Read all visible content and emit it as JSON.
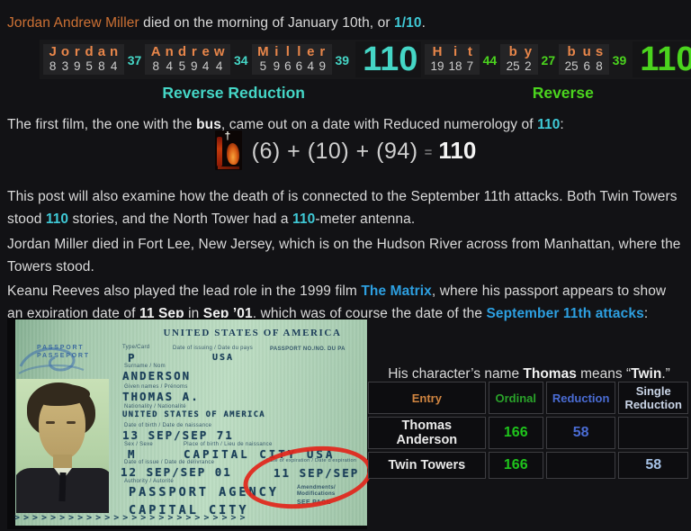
{
  "colors": {
    "page_bg": "#121215",
    "cyan_accent": "#45d6c6",
    "green_accent": "#4bd41e",
    "letter_orange": "#e8864a",
    "orange_link": "#cd7134",
    "blue_link": "#2d9fe0",
    "table_green": "#1fc41c",
    "table_blue": "#4a6cd4",
    "red_circle": "#e2251a"
  },
  "intro": {
    "link": "Jordan Andrew Miller",
    "s1": " died on the morning of January 10th, or ",
    "num": "1/10",
    "s2": "."
  },
  "gematria": {
    "left": {
      "color": "#45d6c6",
      "words": [
        {
          "word": "Jordan",
          "letters": [
            "J",
            "o",
            "r",
            "d",
            "a",
            "n"
          ],
          "values": [
            "8",
            "3",
            "9",
            "5",
            "8",
            "4"
          ],
          "subtotal": "37"
        },
        {
          "word": "Andrew",
          "letters": [
            "A",
            "n",
            "d",
            "r",
            "e",
            "w"
          ],
          "values": [
            "8",
            "4",
            "5",
            "9",
            "4",
            "4"
          ],
          "subtotal": "34"
        },
        {
          "word": "Miller",
          "letters": [
            "M",
            "i",
            "l",
            "l",
            "e",
            "r"
          ],
          "values": [
            "5",
            "9",
            "6",
            "6",
            "4",
            "9"
          ],
          "subtotal": "39"
        }
      ],
      "total": "110",
      "label": "Reverse Reduction"
    },
    "right": {
      "color": "#4bd41e",
      "words": [
        {
          "word": "Hit",
          "letters": [
            "H",
            "i",
            "t"
          ],
          "values": [
            "19",
            "18",
            "7"
          ],
          "subtotal": "44"
        },
        {
          "word": "by",
          "letters": [
            "b",
            "y"
          ],
          "values": [
            "25",
            "2"
          ],
          "subtotal": "27"
        },
        {
          "word": "bus",
          "letters": [
            "b",
            "u",
            "s"
          ],
          "values": [
            "25",
            "6",
            "8"
          ],
          "subtotal": "39"
        }
      ],
      "total": "110",
      "label": "Reverse"
    }
  },
  "film_line": {
    "s1": "The first film, the one with the ",
    "b1": "bus",
    "s2": ", came out on a date with Reduced numerology of ",
    "num": "110",
    "s3": ":"
  },
  "equation": {
    "icon": "movie-poster-icon",
    "cross": "†",
    "terms": "(6) + (10) + (94)",
    "equals": "=",
    "result": "110"
  },
  "sept_para": {
    "s1": "This post will also examine how the death of is connected to the September 11th attacks. Both Twin Towers stood ",
    "n1": "110",
    "s2": " stories, and the North Tower had a ",
    "n2": "110",
    "s3": "-meter antenna."
  },
  "fortlee_para": {
    "text": "Jordan Miller died in Fort Lee, New Jersey, which is on the Hudson River across from Manhattan, where the Towers stood."
  },
  "matrix_para": {
    "s1": "Keanu Reeves also played the lead role in the 1999 film ",
    "link1": "The Matrix",
    "s2": ", where his passport appears to show an expiration date of ",
    "b1": "11 Sep",
    "s3": " in ",
    "b2": "Sep ’01",
    "s4": ", which was of course the date of the ",
    "link2": "September 11th attacks",
    "s5": ":"
  },
  "passport": {
    "word1": "PASSPORT",
    "word2": "PASSEPORT",
    "header": "UNITED STATES OF AMERICA",
    "type_label": "Type/Card",
    "issuing_label": "Date of issuing / Date du pays",
    "number_label": "PASSPORT NO./NO. DU PA",
    "type_value": "P",
    "code_value": "USA",
    "surname_label": "Surname / Nom",
    "surname": "ANDERSON",
    "given_label": "Given names / Prénoms",
    "given": "THOMAS A.",
    "nationality_label": "Nationality / Nationalité",
    "nationality": "UNITED STATES OF AMERICA",
    "birth_label": "Date of birth / Date de naissance",
    "birth": "13 SEP/SEP 71",
    "sex_label": "Sex / Sexe",
    "sex": "M",
    "pob_label": "Place of birth / Lieu de naissance",
    "pob": "CAPITAL CITY USA",
    "issue_label": "Date of issue / Date de délivrance",
    "issue": "12 SEP/SEP 01",
    "authority_label": "Authority / Autorité",
    "authority": "PASSPORT AGENCY",
    "authority_city": "CAPITAL CITY",
    "expiry_label": "Date of expiration / Date d'expiration",
    "expiry": "11 SEP/SEP 01",
    "amendments1": "Amendments/",
    "amendments2": "Modifications",
    "see_page": "SEE PAGE",
    "mrz": ">>>>>>>>>>>>>>>>>>>>>>>>>>"
  },
  "caption": {
    "s1": "His character’s name ",
    "b1": "Thomas",
    "s2": " means “",
    "b2": "Twin",
    "s3": ".”"
  },
  "table": {
    "headers": {
      "entry": "Entry",
      "ordinal": "Ordinal",
      "reduction": "Reduction",
      "single": "Single Reduction"
    },
    "rows": [
      {
        "entry": "Thomas Anderson",
        "ordinal": "166",
        "reduction": "58",
        "single": ""
      },
      {
        "entry": "Twin Towers",
        "ordinal": "166",
        "reduction": "",
        "single": "58"
      }
    ]
  }
}
